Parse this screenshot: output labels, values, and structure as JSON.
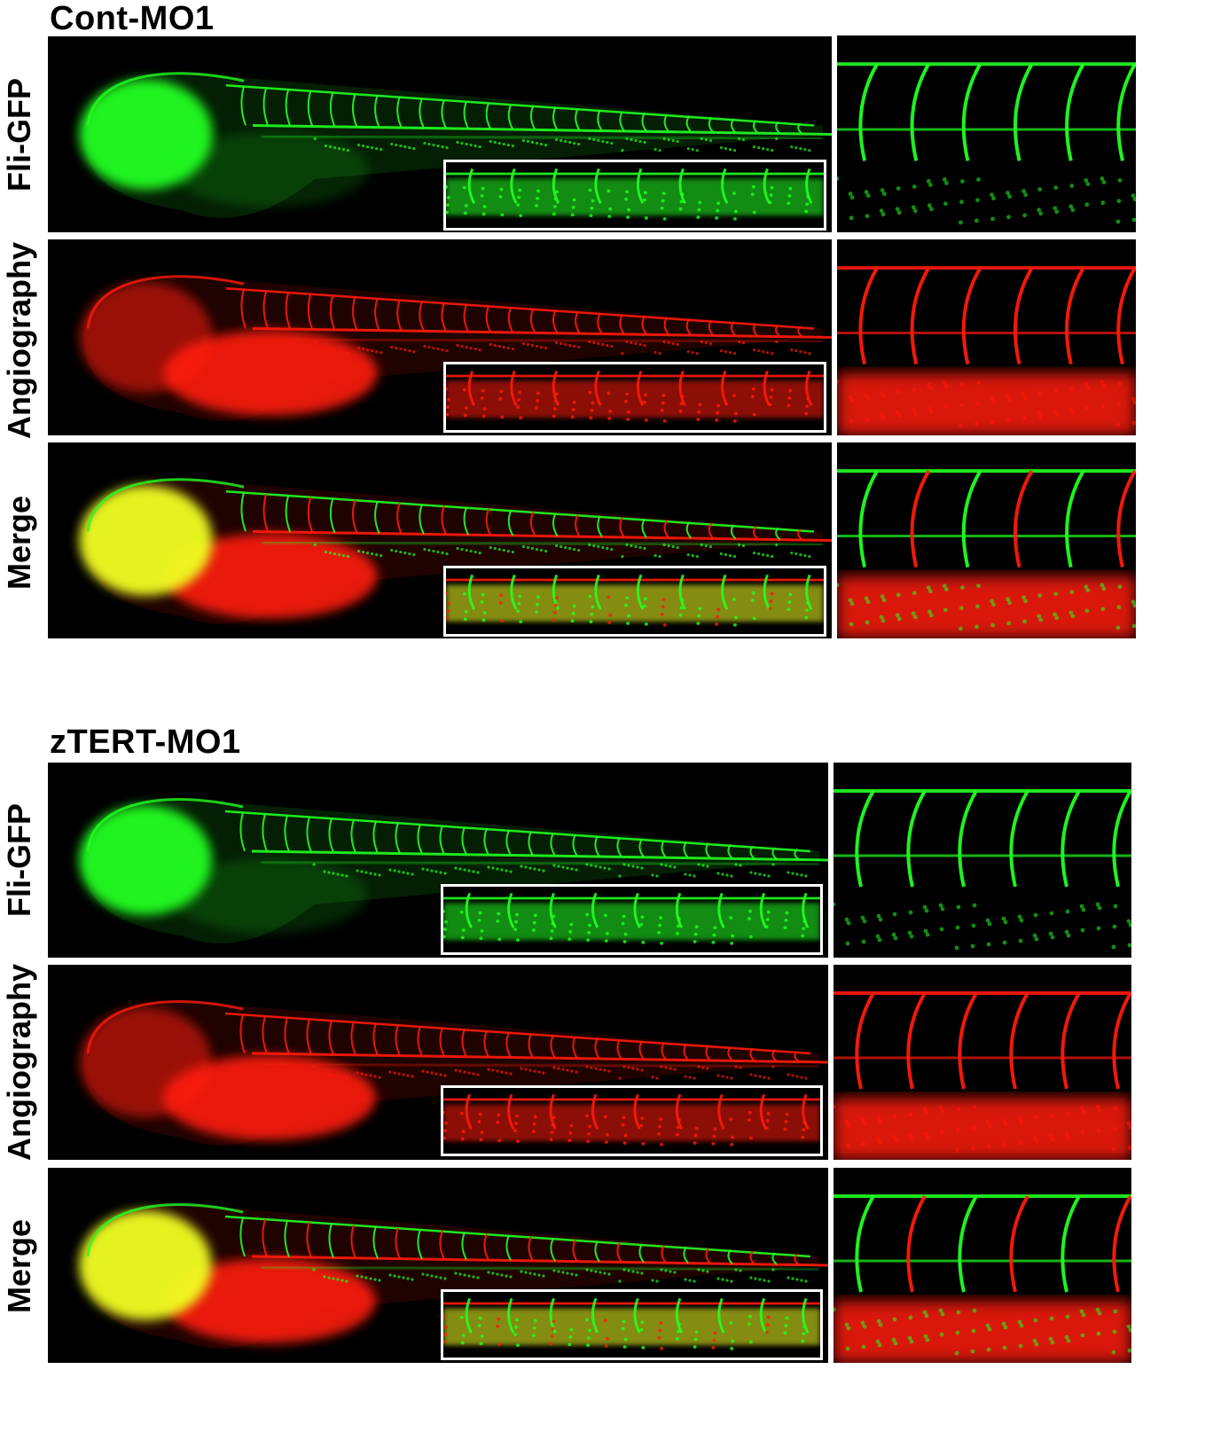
{
  "panels": [
    {
      "title": "Cont-MO1",
      "rows": [
        {
          "label": "Fli-GFP",
          "channel": "green"
        },
        {
          "label": "Angiography",
          "channel": "red"
        },
        {
          "label": "Merge",
          "channel": "merge"
        }
      ]
    },
    {
      "title": "zTERT-MO1",
      "rows": [
        {
          "label": "Fli-GFP",
          "channel": "green"
        },
        {
          "label": "Angiography",
          "channel": "red"
        },
        {
          "label": "Merge",
          "channel": "merge"
        }
      ]
    }
  ],
  "colors": {
    "green": "#22ff22",
    "red": "#ff1a0a",
    "yellow": "#f0ff20",
    "background": "#000000",
    "inset_border": "#ffffff"
  }
}
